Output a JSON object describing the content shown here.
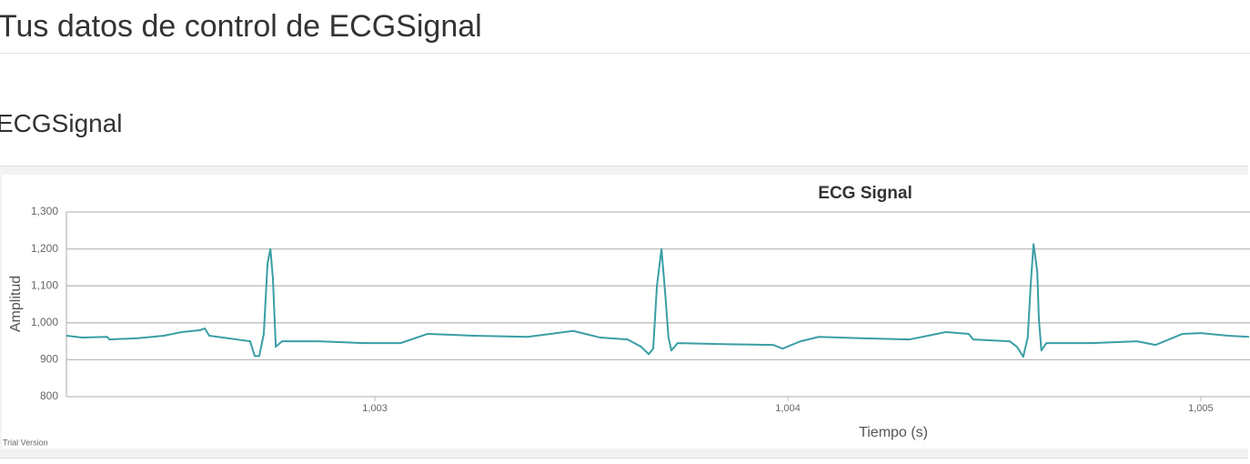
{
  "header": {
    "title": "Tus datos de control de ECGSignal"
  },
  "section": {
    "title": "ECGSignal"
  },
  "chart_data": {
    "type": "line",
    "title": "ECG Signal",
    "x_label": "Tiempo (s)",
    "y_label": "Amplitud",
    "watermark": "Trial Version",
    "color": "#3a9ea5",
    "grid": true,
    "xlim": [
      1002.253,
      1005.117
    ],
    "ylim": [
      800,
      1300
    ],
    "xticks": [
      {
        "value": 1003,
        "label": "1,003"
      },
      {
        "value": 1004,
        "label": "1,004"
      },
      {
        "value": 1005,
        "label": "1,005"
      }
    ],
    "yticks": [
      800,
      900,
      {
        "value": 1000,
        "label": "1,000"
      },
      {
        "value": 1100,
        "label": "1,100"
      },
      {
        "value": 1200,
        "label": "1,200"
      },
      {
        "value": 1300,
        "label": "1,300"
      }
    ],
    "x": [
      1002.253,
      1002.291,
      1002.352,
      1002.357,
      1002.423,
      1002.489,
      1002.533,
      1002.577,
      1002.588,
      1002.599,
      1002.665,
      1002.698,
      1002.709,
      1002.72,
      1002.731,
      1002.74,
      1002.747,
      1002.753,
      1002.76,
      1002.775,
      1002.863,
      1002.974,
      1003.062,
      1003.128,
      1003.238,
      1003.37,
      1003.48,
      1003.546,
      1003.612,
      1003.645,
      1003.663,
      1003.674,
      1003.683,
      1003.694,
      1003.703,
      1003.711,
      1003.718,
      1003.733,
      1003.855,
      1003.965,
      1003.987,
      1004.031,
      1004.075,
      1004.185,
      1004.295,
      1004.383,
      1004.438,
      1004.449,
      1004.537,
      1004.555,
      1004.57,
      1004.581,
      1004.588,
      1004.595,
      1004.604,
      1004.608,
      1004.614,
      1004.626,
      1004.736,
      1004.846,
      1004.89,
      1004.956,
      1005.0,
      1005.066,
      1005.117
    ],
    "values": [
      965,
      960,
      962,
      955,
      958,
      965,
      975,
      980,
      985,
      965,
      955,
      950,
      910,
      910,
      970,
      1160,
      1200,
      1120,
      935,
      950,
      950,
      945,
      945,
      970,
      965,
      962,
      978,
      960,
      955,
      935,
      915,
      930,
      1100,
      1200,
      1080,
      960,
      925,
      945,
      942,
      940,
      930,
      950,
      962,
      958,
      955,
      975,
      970,
      955,
      950,
      935,
      908,
      960,
      1100,
      1213,
      1140,
      1010,
      925,
      945,
      945,
      950,
      940,
      970,
      972,
      965,
      962
    ]
  }
}
